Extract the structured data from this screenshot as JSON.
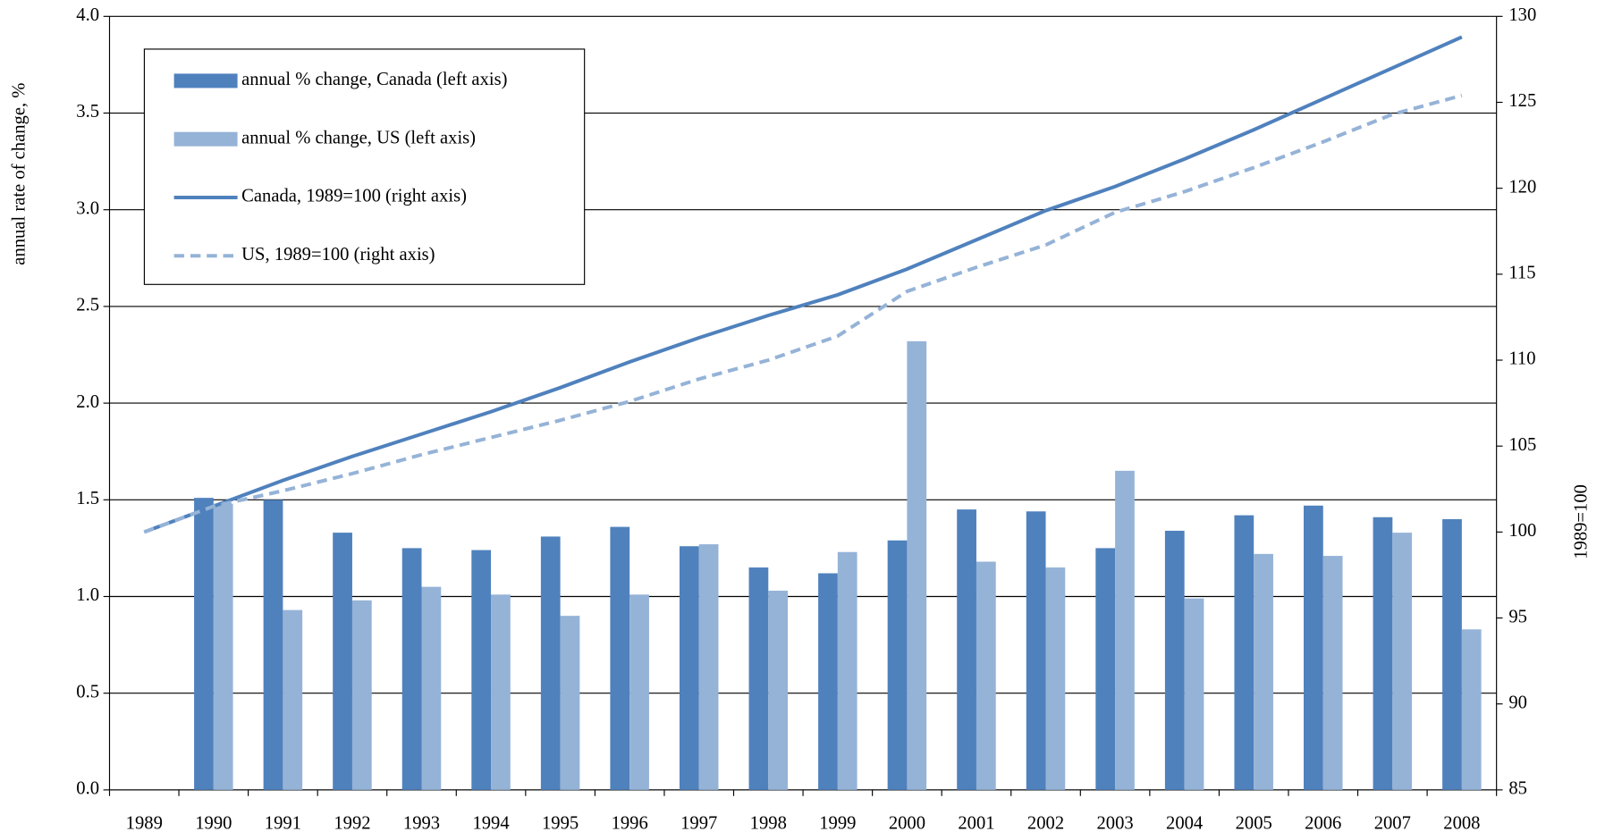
{
  "chart_data": {
    "type": "bar",
    "categories": [
      "1989",
      "1990",
      "1991",
      "1992",
      "1993",
      "1994",
      "1995",
      "1996",
      "1997",
      "1998",
      "1999",
      "2000",
      "2001",
      "2002",
      "2003",
      "2004",
      "2005",
      "2006",
      "2007",
      "2008"
    ],
    "ylabel": "annual rate of change, %",
    "y2label": "1989=100",
    "ylim": [
      0,
      4
    ],
    "yticks": [
      {
        "value": 0,
        "label": "0.0"
      },
      0.5,
      {
        "value": 1,
        "label": "1.0"
      },
      1.5,
      {
        "value": 2,
        "label": "2.0"
      },
      2.5,
      {
        "value": 3,
        "label": "3.0"
      },
      3.5,
      {
        "value": 4,
        "label": "4.0"
      }
    ],
    "y2lim": [
      85,
      130
    ],
    "y2ticks": [
      85,
      90,
      95,
      100,
      105,
      110,
      115,
      120,
      125,
      130
    ],
    "grid": true,
    "legend": "upper left",
    "series": [
      {
        "name": "annual % change, Canada (left axis)",
        "type": "bar",
        "color": "#4f81bd",
        "values": [
          null,
          1.51,
          1.5,
          1.33,
          1.25,
          1.24,
          1.31,
          1.36,
          1.26,
          1.15,
          1.12,
          1.29,
          1.45,
          1.44,
          1.25,
          1.34,
          1.42,
          1.47,
          1.41,
          1.4
        ]
      },
      {
        "name": "annual % change, US (left axis)",
        "type": "bar",
        "color": "#95b3d7",
        "values": [
          null,
          1.48,
          0.93,
          0.98,
          1.05,
          1.01,
          0.9,
          1.01,
          1.27,
          1.03,
          1.23,
          2.32,
          1.18,
          1.15,
          1.65,
          0.99,
          1.22,
          1.21,
          1.33,
          0.83
        ]
      },
      {
        "name": "Canada, 1989=100 (right axis)",
        "type": "line",
        "axis": "y2",
        "color": "#4f81bd",
        "style": "solid",
        "values": [
          100,
          101.5,
          103.0,
          104.4,
          105.7,
          107.0,
          108.4,
          109.9,
          111.3,
          112.6,
          113.8,
          115.3,
          117.0,
          118.7,
          120.1,
          121.7,
          123.4,
          125.2,
          127.0,
          128.8
        ]
      },
      {
        "name": "US, 1989=100 (right axis)",
        "type": "line",
        "axis": "y2",
        "color": "#95b3d7",
        "style": "dashed",
        "values": [
          100,
          101.5,
          102.4,
          103.4,
          104.5,
          105.5,
          106.5,
          107.6,
          108.9,
          110.0,
          111.4,
          114.0,
          115.4,
          116.7,
          118.6,
          119.8,
          121.2,
          122.7,
          124.3,
          125.4
        ]
      }
    ]
  }
}
